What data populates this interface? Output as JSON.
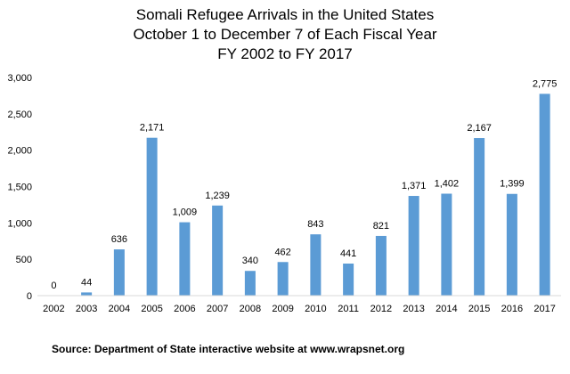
{
  "chart_data": {
    "type": "bar",
    "title": [
      "Somali Refugee Arrivals in the United States",
      "October 1 to December 7 of Each Fiscal Year",
      "FY 2002 to FY 2017"
    ],
    "categories": [
      "2002",
      "2003",
      "2004",
      "2005",
      "2006",
      "2007",
      "2008",
      "2009",
      "2010",
      "2011",
      "2012",
      "2013",
      "2014",
      "2015",
      "2016",
      "2017"
    ],
    "values": [
      0,
      44,
      636,
      2171,
      1009,
      1239,
      340,
      462,
      843,
      441,
      821,
      1371,
      1402,
      2167,
      1399,
      2775
    ],
    "value_labels": [
      "0",
      "44",
      "636",
      "2,171",
      "1,009",
      "1,239",
      "340",
      "462",
      "843",
      "441",
      "821",
      "1,371",
      "1,402",
      "2,167",
      "1,399",
      "2,775"
    ],
    "ylim": [
      0,
      3000
    ],
    "yticks": [
      0,
      500,
      1000,
      1500,
      2000,
      2500,
      3000
    ],
    "ytick_labels": [
      "0",
      "500",
      "1,000",
      "1,500",
      "2,000",
      "2,500",
      "3,000"
    ],
    "xlabel": "",
    "ylabel": "",
    "grid": false,
    "bar_color": "#5b9bd5",
    "source": "Source: Department of State interactive website at www.wrapsnet.org"
  }
}
